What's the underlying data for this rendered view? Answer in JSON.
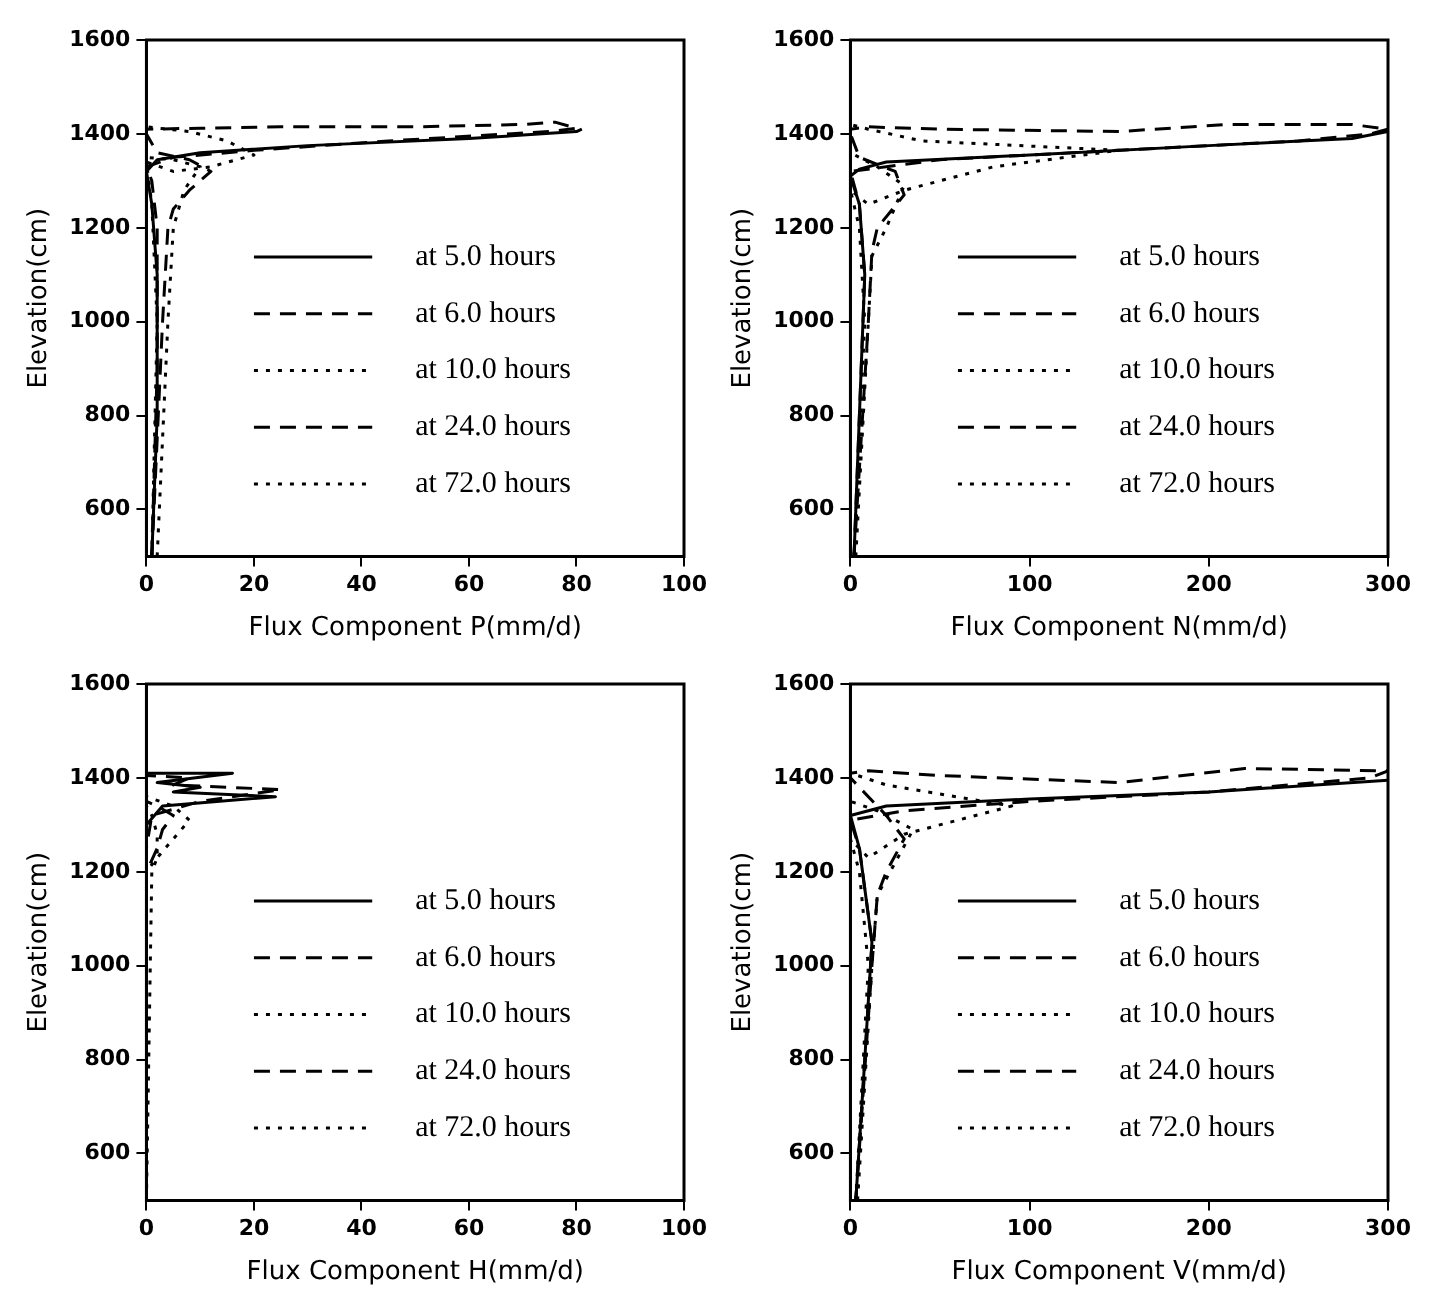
{
  "chart_data": [
    {
      "type": "line",
      "xlabel": "Flux Component P(mm/d)",
      "ylabel": "Elevation(cm)",
      "xlim": [
        0,
        100
      ],
      "xticks": [
        0,
        20,
        40,
        60,
        80,
        100
      ],
      "ylim": [
        500,
        1600
      ],
      "yticks": [
        600,
        800,
        1000,
        1200,
        1400,
        1600
      ],
      "grid": false,
      "legend": "right",
      "marker": "none",
      "series": [
        {
          "name": "at 5.0 hours",
          "color": "#000000",
          "line_style": "solid",
          "x": [
            1,
            2,
            2,
            1,
            0,
            2,
            10,
            30,
            60,
            80,
            81
          ],
          "values": [
            500,
            800,
            1100,
            1250,
            1320,
            1345,
            1360,
            1375,
            1390,
            1405,
            1410
          ]
        },
        {
          "name": "at 6.0 hours",
          "color": "#000000",
          "line_style": "dashed",
          "x": [
            1,
            2,
            2,
            1,
            0,
            5,
            20,
            45,
            75,
            80,
            76,
            70,
            50,
            25,
            10,
            0
          ],
          "values": [
            500,
            900,
            1200,
            1300,
            1330,
            1350,
            1365,
            1385,
            1405,
            1412,
            1425,
            1420,
            1415,
            1415,
            1412,
            1410
          ]
        },
        {
          "name": "at 10.0 hours",
          "color": "#000000",
          "line_style": "dotted",
          "x": [
            1,
            2,
            1,
            0,
            5,
            12,
            20,
            15,
            8,
            0
          ],
          "values": [
            500,
            1000,
            1250,
            1340,
            1320,
            1330,
            1355,
            1385,
            1405,
            1415
          ]
        },
        {
          "name": "at 24.0 hours",
          "color": "#000000",
          "line_style": "dashed",
          "x": [
            1,
            3,
            4,
            5,
            8,
            12,
            8,
            2,
            0
          ],
          "values": [
            500,
            1000,
            1200,
            1240,
            1280,
            1320,
            1345,
            1360,
            1400
          ]
        },
        {
          "name": "at 72.0 hours",
          "color": "#000000",
          "line_style": "dotted",
          "x": [
            2,
            4,
            5,
            7,
            10,
            5,
            0
          ],
          "values": [
            500,
            1000,
            1200,
            1280,
            1330,
            1345,
            1350
          ]
        }
      ]
    },
    {
      "type": "line",
      "xlabel": "Flux Component N(mm/d)",
      "ylabel": "Elevation(cm)",
      "xlim": [
        0,
        300
      ],
      "xticks": [
        0,
        100,
        200,
        300
      ],
      "ylim": [
        500,
        1600
      ],
      "yticks": [
        600,
        800,
        1000,
        1200,
        1400,
        1600
      ],
      "grid": false,
      "legend": "right",
      "marker": "none",
      "series": [
        {
          "name": "at 5.0 hours",
          "color": "#000000",
          "line_style": "solid",
          "x": [
            2,
            5,
            8,
            5,
            0,
            5,
            20,
            100,
            200,
            280,
            300
          ],
          "values": [
            500,
            800,
            1100,
            1250,
            1310,
            1325,
            1340,
            1355,
            1375,
            1390,
            1405
          ]
        },
        {
          "name": "at 6.0 hours",
          "color": "#000000",
          "line_style": "dashed",
          "x": [
            2,
            5,
            8,
            5,
            0,
            20,
            50,
            150,
            250,
            290,
            300,
            280,
            210,
            150,
            50,
            10,
            0
          ],
          "values": [
            500,
            800,
            1100,
            1250,
            1320,
            1330,
            1345,
            1365,
            1385,
            1400,
            1410,
            1420,
            1420,
            1405,
            1410,
            1415,
            1410
          ]
        },
        {
          "name": "at 10.0 hours",
          "color": "#000000",
          "line_style": "dotted",
          "x": [
            2,
            8,
            5,
            0,
            10,
            30,
            80,
            150,
            40,
            10,
            0
          ],
          "values": [
            500,
            1000,
            1200,
            1280,
            1250,
            1280,
            1330,
            1365,
            1385,
            1410,
            1420
          ]
        },
        {
          "name": "at 24.0 hours",
          "color": "#000000",
          "line_style": "dashed",
          "x": [
            2,
            10,
            12,
            15,
            30,
            25,
            5,
            0
          ],
          "values": [
            500,
            1000,
            1150,
            1200,
            1270,
            1320,
            1350,
            1400
          ]
        },
        {
          "name": "at 72.0 hours",
          "color": "#000000",
          "line_style": "dotted",
          "x": [
            3,
            10,
            12,
            20,
            30,
            15,
            0
          ],
          "values": [
            500,
            1000,
            1140,
            1200,
            1290,
            1330,
            1360
          ]
        }
      ]
    },
    {
      "type": "line",
      "xlabel": "Flux Component H(mm/d)",
      "ylabel": "Elevation(cm)",
      "xlim": [
        0,
        100
      ],
      "xticks": [
        0,
        20,
        40,
        60,
        80,
        100
      ],
      "ylim": [
        500,
        1600
      ],
      "yticks": [
        600,
        800,
        1000,
        1200,
        1400,
        1600
      ],
      "grid": false,
      "legend": "right",
      "marker": "none",
      "series": [
        {
          "name": "at 5.0 hours",
          "color": "#000000",
          "line_style": "solid",
          "x": [
            0,
            0,
            3,
            24,
            5,
            10,
            2,
            16,
            0
          ],
          "values": [
            500,
            1300,
            1340,
            1360,
            1370,
            1380,
            1390,
            1410,
            1410
          ]
        },
        {
          "name": "at 6.0 hours",
          "color": "#000000",
          "line_style": "dashed",
          "x": [
            0,
            0,
            1,
            10,
            25,
            5,
            8,
            0
          ],
          "values": [
            500,
            1250,
            1320,
            1350,
            1375,
            1385,
            1400,
            1405
          ]
        },
        {
          "name": "at 10.0 hours",
          "color": "#000000",
          "line_style": "dotted",
          "x": [
            0,
            0,
            2,
            5,
            8,
            5,
            0
          ],
          "values": [
            500,
            1200,
            1230,
            1270,
            1310,
            1340,
            1360
          ]
        },
        {
          "name": "at 24.0 hours",
          "color": "#000000",
          "line_style": "dashed",
          "x": [
            0,
            0,
            2,
            3,
            5,
            2,
            0
          ],
          "values": [
            500,
            1200,
            1250,
            1290,
            1320,
            1340,
            1350
          ]
        },
        {
          "name": "at 72.0 hours",
          "color": "#000000",
          "line_style": "dotted",
          "x": [
            0,
            1,
            2,
            2,
            1,
            0
          ],
          "values": [
            500,
            1200,
            1230,
            1280,
            1320,
            1340
          ]
        }
      ]
    },
    {
      "type": "line",
      "xlabel": "Flux Component V(mm/d)",
      "ylabel": "Elevation(cm)",
      "xlim": [
        0,
        300
      ],
      "xticks": [
        0,
        100,
        200,
        300
      ],
      "ylim": [
        500,
        1600
      ],
      "yticks": [
        600,
        800,
        1000,
        1200,
        1400,
        1600
      ],
      "grid": false,
      "legend": "right",
      "marker": "none",
      "series": [
        {
          "name": "at 5.0 hours",
          "color": "#000000",
          "line_style": "solid",
          "x": [
            3,
            8,
            12,
            5,
            0,
            20,
            100,
            200,
            300
          ],
          "values": [
            500,
            800,
            1050,
            1250,
            1320,
            1340,
            1355,
            1370,
            1395
          ]
        },
        {
          "name": "at 6.0 hours",
          "color": "#000000",
          "line_style": "dashed",
          "x": [
            3,
            8,
            12,
            5,
            0,
            30,
            100,
            200,
            290,
            300,
            220,
            150,
            50,
            10,
            0
          ],
          "values": [
            500,
            800,
            1050,
            1250,
            1310,
            1330,
            1350,
            1370,
            1400,
            1415,
            1420,
            1390,
            1405,
            1415,
            1410
          ]
        },
        {
          "name": "at 10.0 hours",
          "color": "#000000",
          "line_style": "dotted",
          "x": [
            3,
            10,
            5,
            0,
            10,
            30,
            90,
            20,
            0
          ],
          "values": [
            500,
            1000,
            1200,
            1270,
            1230,
            1280,
            1340,
            1385,
            1410
          ]
        },
        {
          "name": "at 24.0 hours",
          "color": "#000000",
          "line_style": "dashed",
          "x": [
            3,
            12,
            15,
            20,
            30,
            20,
            0
          ],
          "values": [
            500,
            1000,
            1150,
            1200,
            1270,
            1320,
            1400
          ]
        },
        {
          "name": "at 72.0 hours",
          "color": "#000000",
          "line_style": "dotted",
          "x": [
            4,
            12,
            15,
            25,
            35,
            15,
            0
          ],
          "values": [
            500,
            1000,
            1150,
            1220,
            1290,
            1330,
            1350
          ]
        }
      ]
    }
  ]
}
